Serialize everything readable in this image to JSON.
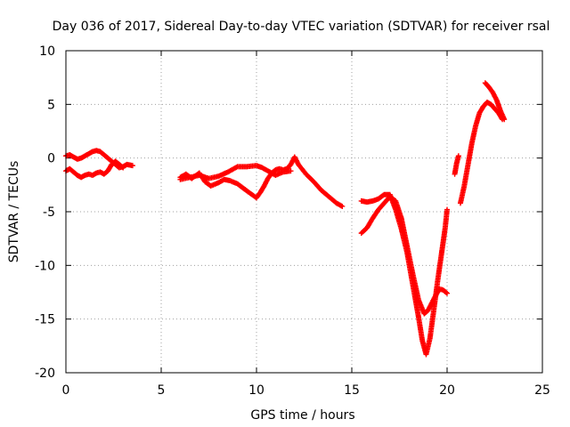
{
  "chart_data": {
    "type": "scatter",
    "title": "Day 036 of 2017, Sidereal Day-to-day VTEC variation (SDTVAR) for receiver rsal",
    "xlabel": "GPS time / hours",
    "ylabel": "SDTVAR / TECUs",
    "xlim": [
      0,
      25
    ],
    "ylim": [
      -20,
      10
    ],
    "xticks": [
      "0",
      "5",
      "10",
      "15",
      "20",
      "25"
    ],
    "yticks": [
      "10",
      "5",
      "0",
      "-5",
      "-10",
      "-15",
      "-20"
    ],
    "grid": true,
    "marker": "+",
    "series_color": "#ff0000",
    "series": [
      {
        "x": [
          0.0,
          0.2,
          0.4,
          0.6,
          0.8,
          1.0,
          1.2,
          1.4,
          1.6,
          1.8,
          2.0,
          2.2,
          2.4,
          2.6,
          2.8,
          3.0,
          3.2,
          3.5
        ],
        "y": [
          0.2,
          0.3,
          0.1,
          -0.1,
          0.0,
          0.2,
          0.4,
          0.6,
          0.7,
          0.6,
          0.3,
          0.0,
          -0.3,
          -0.6,
          -0.9,
          -0.8,
          -0.6,
          -0.7
        ]
      },
      {
        "x": [
          0.0,
          0.2,
          0.4,
          0.6,
          0.8,
          1.0,
          1.2,
          1.4,
          1.6,
          1.8,
          2.0,
          2.2,
          2.4,
          2.6,
          2.8,
          3.0
        ],
        "y": [
          -1.2,
          -1.0,
          -1.3,
          -1.6,
          -1.8,
          -1.6,
          -1.5,
          -1.6,
          -1.4,
          -1.3,
          -1.5,
          -1.2,
          -0.6,
          -0.3,
          -0.6,
          -0.9
        ]
      },
      {
        "x": [
          6.0,
          6.3,
          6.6,
          7.0,
          7.3,
          7.6,
          8.0,
          8.3,
          8.6,
          9.0,
          9.3,
          9.6,
          10.0,
          10.2,
          10.4,
          10.6,
          10.8,
          11.0,
          11.2,
          11.4,
          11.6,
          11.8,
          12.0,
          12.2,
          12.6,
          13.0,
          13.4,
          13.8,
          14.2,
          14.5
        ],
        "y": [
          -1.8,
          -1.5,
          -1.9,
          -1.4,
          -2.2,
          -2.6,
          -2.3,
          -2.0,
          -2.1,
          -2.4,
          -2.8,
          -3.2,
          -3.7,
          -3.2,
          -2.6,
          -1.9,
          -1.4,
          -1.1,
          -1.0,
          -1.1,
          -1.0,
          -0.6,
          0.1,
          -0.6,
          -1.5,
          -2.2,
          -3.0,
          -3.6,
          -4.2,
          -4.5
        ]
      },
      {
        "x": [
          6.0,
          6.5,
          7.0,
          7.5,
          8.0,
          8.5,
          9.0,
          9.5,
          10.0,
          10.3,
          10.6,
          11.0,
          11.4,
          11.8
        ],
        "y": [
          -2.0,
          -1.8,
          -1.6,
          -1.9,
          -1.7,
          -1.3,
          -0.8,
          -0.8,
          -0.7,
          -0.9,
          -1.2,
          -1.6,
          -1.3,
          -1.2
        ]
      },
      {
        "x": [
          15.5,
          15.8,
          16.1,
          16.4,
          16.7,
          17.0,
          17.3,
          17.6,
          17.9,
          18.1,
          18.3,
          18.5,
          18.7,
          18.9,
          19.1,
          19.3,
          19.5,
          19.7,
          19.9,
          20.0
        ],
        "y": [
          -4.0,
          -4.1,
          -4.0,
          -3.8,
          -3.4,
          -3.4,
          -4.8,
          -6.6,
          -8.8,
          -10.8,
          -12.8,
          -14.8,
          -17.0,
          -18.3,
          -16.8,
          -14.2,
          -11.5,
          -9.0,
          -6.5,
          -4.8
        ]
      },
      {
        "x": [
          15.5,
          15.8,
          16.1,
          16.4,
          16.7,
          17.0,
          17.3,
          17.6,
          17.9,
          18.2,
          18.5,
          18.8,
          19.0,
          19.2,
          19.4,
          19.6,
          19.8,
          20.0
        ],
        "y": [
          -7.0,
          -6.5,
          -5.6,
          -4.8,
          -4.2,
          -3.6,
          -4.0,
          -5.6,
          -8.2,
          -10.8,
          -13.2,
          -14.5,
          -14.2,
          -13.5,
          -12.8,
          -12.2,
          -12.3,
          -12.6
        ]
      },
      {
        "x": [
          20.4,
          20.5,
          20.6
        ],
        "y": [
          -1.5,
          -0.5,
          0.2
        ]
      },
      {
        "x": [
          20.7,
          20.9,
          21.1,
          21.3,
          21.5,
          21.7,
          21.9,
          22.1,
          22.3,
          22.5,
          22.7,
          22.9
        ],
        "y": [
          -4.2,
          -2.6,
          -0.6,
          1.4,
          3.0,
          4.2,
          4.8,
          5.2,
          5.0,
          4.6,
          4.2,
          3.6
        ]
      },
      {
        "x": [
          22.0,
          22.2,
          22.4,
          22.6,
          22.8,
          23.0
        ],
        "y": [
          7.0,
          6.6,
          6.1,
          5.4,
          4.4,
          3.6
        ]
      }
    ]
  }
}
